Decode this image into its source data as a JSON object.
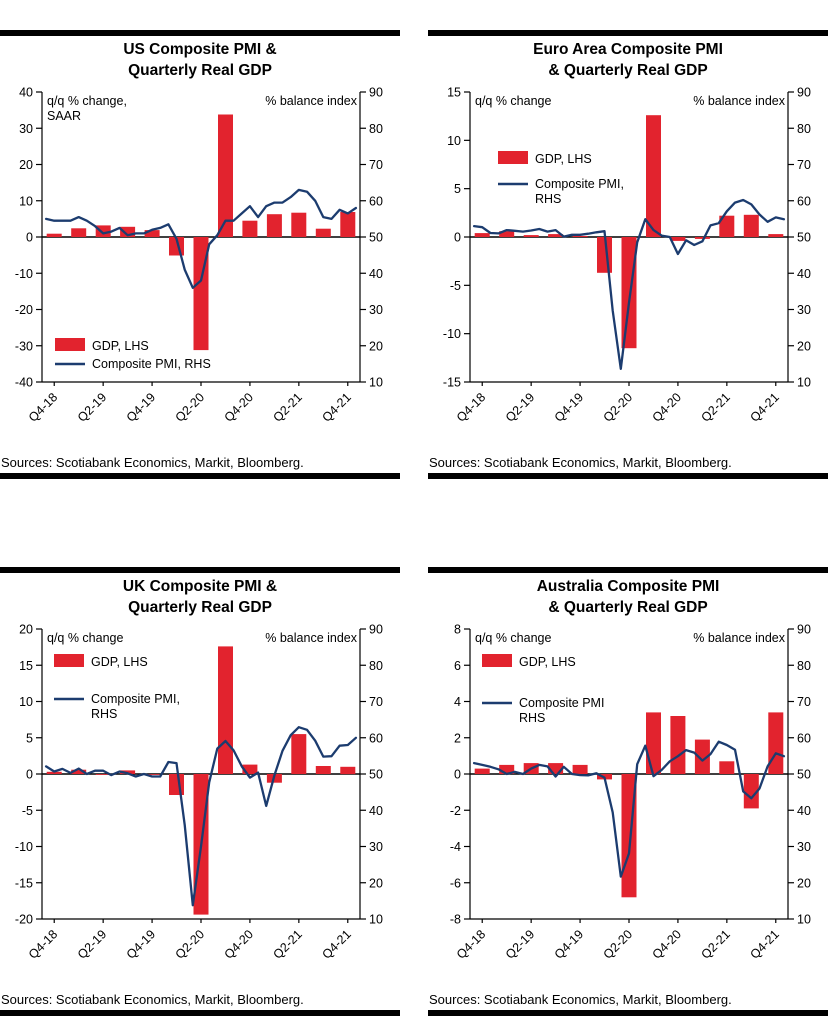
{
  "colors": {
    "bar_red": "#e2232e",
    "line_navy": "#1c3c6f",
    "axis_black": "#000000",
    "rule_black": "#000000",
    "background": "#ffffff"
  },
  "chart_data": [
    {
      "type": "bar+line",
      "title": "US Composite PMI &\nQuarterly Real GDP",
      "left_axis": {
        "label": "q/q % change,\nSAAR",
        "min": -40,
        "max": 40,
        "step": 10
      },
      "right_axis": {
        "label": "% balance index",
        "min": 10,
        "max": 90,
        "step": 10
      },
      "quarters": [
        "Q4-18",
        "Q1-19",
        "Q2-19",
        "Q3-19",
        "Q4-19",
        "Q1-20",
        "Q2-20",
        "Q3-20",
        "Q4-20",
        "Q1-21",
        "Q2-21",
        "Q3-21",
        "Q4-21"
      ],
      "x_tick_labels": [
        "Q4-18",
        "Q2-19",
        "Q4-19",
        "Q2-20",
        "Q4-20",
        "Q2-21",
        "Q4-21"
      ],
      "series": [
        {
          "name": "GDP, LHS",
          "type": "bar",
          "axis": "left",
          "values": [
            0.9,
            2.4,
            3.2,
            2.8,
            1.9,
            -5.1,
            -31.2,
            33.8,
            4.5,
            6.3,
            6.7,
            2.3,
            6.9
          ]
        },
        {
          "name": "Composite PMI, RHS",
          "type": "line",
          "axis": "right",
          "frequency": "monthly",
          "values": [
            55.0,
            54.5,
            54.5,
            54.5,
            55.5,
            54.5,
            53.0,
            51.0,
            51.5,
            52.5,
            50.5,
            51.0,
            51.0,
            52.0,
            52.5,
            53.5,
            49.5,
            41.0,
            36.0,
            38.0,
            48.0,
            50.5,
            54.5,
            54.5,
            56.5,
            58.5,
            55.5,
            58.5,
            59.5,
            59.5,
            61.0,
            63.0,
            62.5,
            60.0,
            55.5,
            55.0,
            57.5,
            56.5,
            58.0
          ]
        }
      ],
      "legend": {
        "x": 55,
        "gdp_y": 267,
        "pmi_y": 286,
        "pmi_lines": [
          "Composite PMI, RHS"
        ]
      },
      "sources": "Sources: Scotiabank Economics, Markit, Bloomberg."
    },
    {
      "type": "bar+line",
      "title": "Euro Area Composite PMI\n& Quarterly Real GDP",
      "left_axis": {
        "label": "q/q % change",
        "min": -15,
        "max": 15,
        "step": 5
      },
      "right_axis": {
        "label": "% balance index",
        "min": 10,
        "max": 90,
        "step": 10
      },
      "quarters": [
        "Q4-18",
        "Q1-19",
        "Q2-19",
        "Q3-19",
        "Q4-19",
        "Q1-20",
        "Q2-20",
        "Q3-20",
        "Q4-20",
        "Q1-21",
        "Q2-21",
        "Q3-21",
        "Q4-21"
      ],
      "x_tick_labels": [
        "Q4-18",
        "Q2-19",
        "Q4-19",
        "Q2-20",
        "Q4-20",
        "Q2-21",
        "Q4-21"
      ],
      "series": [
        {
          "name": "GDP, LHS",
          "type": "bar",
          "axis": "left",
          "values": [
            0.4,
            0.6,
            0.2,
            0.3,
            0.1,
            -3.7,
            -11.5,
            12.6,
            -0.4,
            -0.2,
            2.2,
            2.3,
            0.3
          ]
        },
        {
          "name": "Composite PMI, RHS",
          "type": "line",
          "axis": "right",
          "frequency": "monthly",
          "values": [
            53.0,
            52.7,
            51.1,
            51.0,
            51.9,
            51.7,
            51.5,
            51.8,
            52.2,
            51.5,
            51.9,
            50.1,
            50.6,
            50.6,
            50.9,
            51.3,
            51.6,
            29.7,
            13.6,
            31.9,
            48.5,
            54.9,
            51.9,
            50.4,
            50.0,
            45.3,
            49.1,
            47.8,
            48.8,
            53.2,
            53.8,
            57.1,
            59.5,
            60.2,
            59.0,
            56.2,
            54.2,
            55.4,
            54.9
          ]
        }
      ],
      "legend": {
        "x": 70,
        "gdp_y": 80,
        "pmi_y": 106,
        "pmi_lines": [
          "Composite PMI,",
          "RHS"
        ]
      },
      "sources": "Sources: Scotiabank Economics, Markit, Bloomberg."
    },
    {
      "type": "bar+line",
      "title": "UK Composite PMI &\nQuarterly Real GDP",
      "left_axis": {
        "label": "q/q % change",
        "min": -20,
        "max": 20,
        "step": 5
      },
      "right_axis": {
        "label": "% balance index",
        "min": 10,
        "max": 90,
        "step": 10
      },
      "quarters": [
        "Q4-18",
        "Q1-19",
        "Q2-19",
        "Q3-19",
        "Q4-19",
        "Q1-20",
        "Q2-20",
        "Q3-20",
        "Q4-20",
        "Q1-21",
        "Q2-21",
        "Q3-21",
        "Q4-21"
      ],
      "x_tick_labels": [
        "Q4-18",
        "Q2-19",
        "Q4-19",
        "Q2-20",
        "Q4-20",
        "Q2-21",
        "Q4-21"
      ],
      "series": [
        {
          "name": "GDP, LHS",
          "type": "bar",
          "axis": "left",
          "values": [
            0.3,
            0.6,
            -0.1,
            0.5,
            0.0,
            -2.9,
            -19.4,
            17.6,
            1.3,
            -1.2,
            5.5,
            1.1,
            1.0
          ]
        },
        {
          "name": "Composite PMI, RHS",
          "type": "line",
          "axis": "right",
          "frequency": "monthly",
          "values": [
            52.1,
            50.7,
            51.4,
            50.3,
            51.5,
            50.0,
            50.9,
            50.9,
            49.7,
            50.7,
            50.2,
            49.3,
            50.0,
            49.3,
            49.3,
            53.3,
            53.0,
            36.0,
            13.8,
            30.0,
            47.7,
            57.0,
            59.1,
            56.5,
            52.1,
            49.0,
            50.4,
            41.2,
            49.6,
            56.4,
            60.7,
            62.9,
            62.2,
            59.2,
            54.8,
            54.9,
            57.8,
            58.0,
            60.0
          ]
        }
      ],
      "legend": {
        "x": 54,
        "gdp_y": 46,
        "pmi_y": 84,
        "pmi_lines": [
          "Composite PMI,",
          "RHS"
        ]
      },
      "sources": "Sources: Scotiabank Economics, Markit, Bloomberg."
    },
    {
      "type": "bar+line",
      "title": "Australia Composite PMI\n& Quarterly Real GDP",
      "left_axis": {
        "label": "q/q % change",
        "min": -8,
        "max": 8,
        "step": 2
      },
      "right_axis": {
        "label": "% balance index",
        "min": 10,
        "max": 90,
        "step": 10
      },
      "quarters": [
        "Q4-18",
        "Q1-19",
        "Q2-19",
        "Q3-19",
        "Q4-19",
        "Q1-20",
        "Q2-20",
        "Q3-20",
        "Q4-20",
        "Q1-21",
        "Q2-21",
        "Q3-21",
        "Q4-21"
      ],
      "x_tick_labels": [
        "Q4-18",
        "Q2-19",
        "Q4-19",
        "Q2-20",
        "Q4-20",
        "Q2-21",
        "Q4-21"
      ],
      "series": [
        {
          "name": "GDP, LHS",
          "type": "bar",
          "axis": "left",
          "values": [
            0.3,
            0.5,
            0.6,
            0.6,
            0.5,
            -0.3,
            -6.8,
            3.4,
            3.2,
            1.9,
            0.7,
            -1.9,
            3.4
          ]
        },
        {
          "name": "Composite PMI, RHS",
          "type": "line",
          "axis": "right",
          "frequency": "monthly",
          "values": [
            53.0,
            52.5,
            52.0,
            51.3,
            50.0,
            50.6,
            50.0,
            51.5,
            52.5,
            52.1,
            49.3,
            52.0,
            50.0,
            49.7,
            49.6,
            50.2,
            49.0,
            39.4,
            21.7,
            28.1,
            52.7,
            57.8,
            49.4,
            51.1,
            53.5,
            54.9,
            56.6,
            55.9,
            53.7,
            55.5,
            58.9,
            58.0,
            56.7,
            45.2,
            43.3,
            46.0,
            52.1,
            55.7,
            54.9
          ]
        }
      ],
      "legend": {
        "x": 54,
        "gdp_y": 46,
        "pmi_y": 88,
        "pmi_lines": [
          "Composite PMI",
          "RHS"
        ]
      },
      "sources": "Sources: Scotiabank Economics, Markit, Bloomberg."
    }
  ]
}
